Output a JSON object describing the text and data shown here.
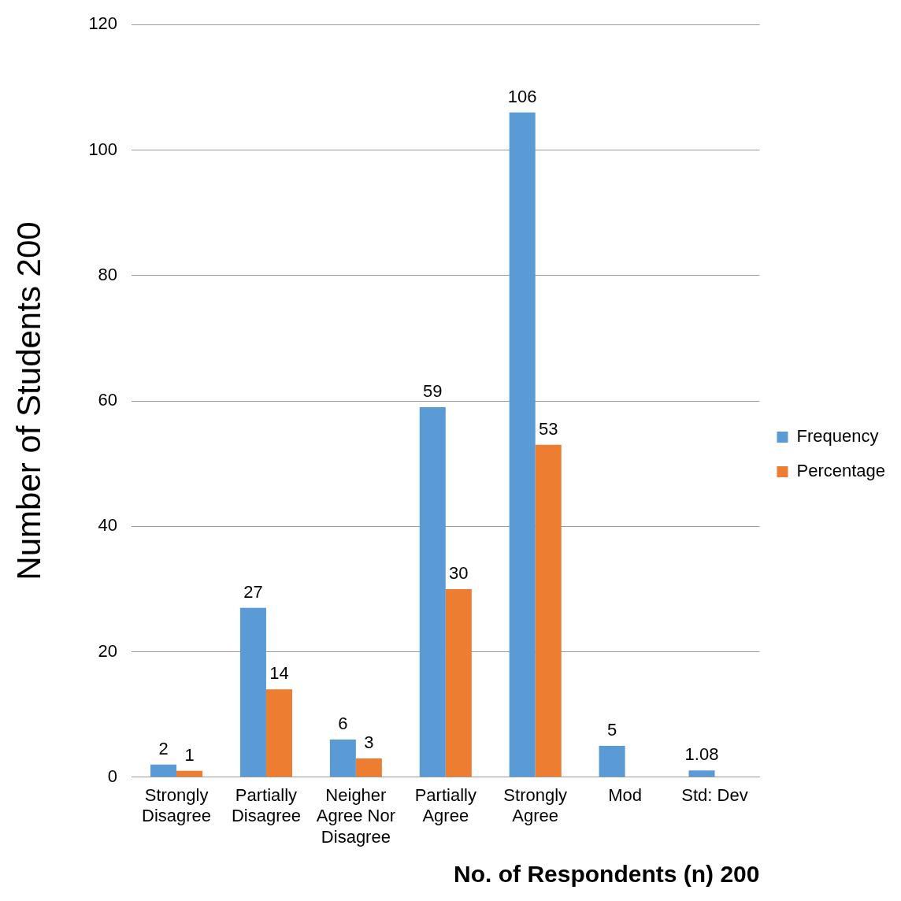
{
  "chart_data": {
    "type": "bar",
    "xlabel": "No. of Respondents (n) 200",
    "ylabel": "Number of Students 200",
    "categories": [
      "Strongly Disagree",
      "Partially Disagree",
      "Neigher Agree Nor Disagree",
      "Partially Agree",
      "Strongly Agree",
      "Mod",
      "Std: Dev"
    ],
    "series": [
      {
        "name": "Frequency",
        "color": "#5b9bd5",
        "values": [
          2,
          27,
          6,
          59,
          106,
          5,
          1.08
        ]
      },
      {
        "name": "Percentage",
        "color": "#ed7d31",
        "values": [
          1,
          14,
          3,
          30,
          53,
          null,
          null
        ]
      }
    ],
    "ylim": [
      0,
      120
    ],
    "yticks": [
      0,
      20,
      40,
      60,
      80,
      100,
      120
    ],
    "grid": "y",
    "legend": "right",
    "data_labels": true
  }
}
